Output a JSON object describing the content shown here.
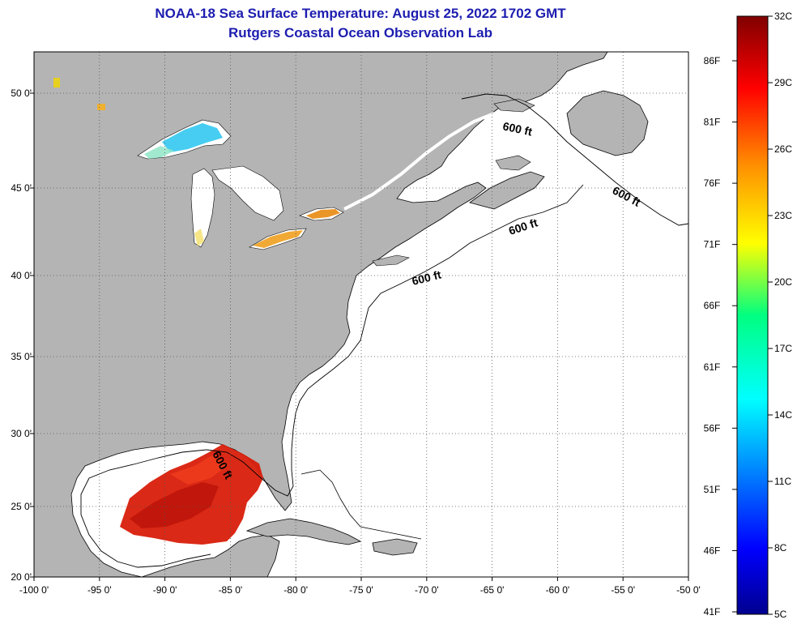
{
  "title_line1": "NOAA-18 Sea Surface Temperature:  August 25, 2022 1702 GMT",
  "title_line2": "Rutgers Coastal Ocean Observation Lab",
  "lon_ticks": [
    "-100 0'",
    "-95 0'",
    "-90 0'",
    "-85 0'",
    "-80 0'",
    "-75 0'",
    "-70 0'",
    "-65 0'",
    "-60 0'",
    "-55 0'",
    "-50 0'"
  ],
  "lat_ticks": [
    "50 0'",
    "45 0'",
    "40 0'",
    "35 0'",
    "30 0'",
    "25 0'",
    "20 0'"
  ],
  "contour_label": "600 ft",
  "colorbar": {
    "celsius": [
      "32C",
      "29C",
      "26C",
      "23C",
      "20C",
      "17C",
      "14C",
      "11C",
      "8C",
      "5C"
    ],
    "fahrenheit": [
      "86F",
      "81F",
      "76F",
      "71F",
      "66F",
      "61F",
      "56F",
      "51F",
      "46F",
      "41F"
    ]
  },
  "colors": {
    "land": "#b4b4b4",
    "ocean": "#ffffff",
    "title": "#1d1db0",
    "warm_sst": "#d81e0a"
  }
}
